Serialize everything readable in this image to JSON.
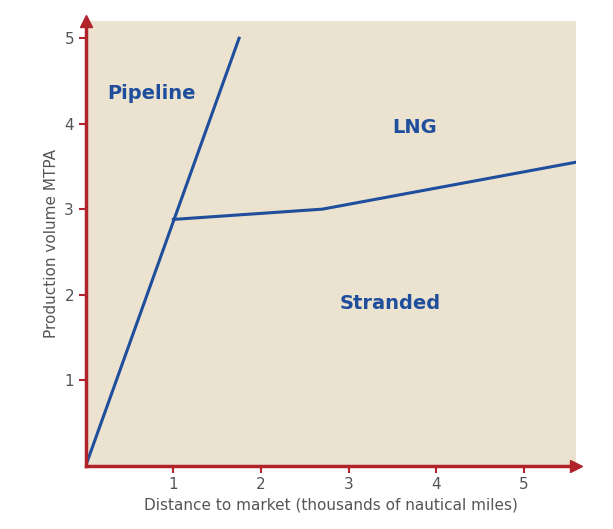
{
  "chart_data": {
    "type": "line",
    "x_label": "Distance to market (thousands of nautical miles)",
    "y_label": "Production volume MTPA",
    "series": [
      {
        "color": "#1f4e9c",
        "x": [
          0,
          1.75
        ],
        "values": [
          0,
          5.0
        ]
      },
      {
        "color": "#1f4e9c",
        "x": [
          1.0,
          2.7,
          5.6
        ],
        "values": [
          2.88,
          3.0,
          3.55
        ]
      }
    ],
    "annotations": [
      {
        "text": "Pipeline",
        "x": 0.25,
        "y": 4.35
      },
      {
        "text": "LNG",
        "x": 3.5,
        "y": 3.95
      },
      {
        "text": "Stranded",
        "x": 2.9,
        "y": 1.9
      }
    ],
    "xlim": [
      0,
      5.6
    ],
    "ylim": [
      0,
      5.2
    ],
    "xticks": [
      1,
      2,
      3,
      4,
      5
    ],
    "yticks": [
      1,
      2,
      3,
      4,
      5
    ],
    "grid": false
  }
}
